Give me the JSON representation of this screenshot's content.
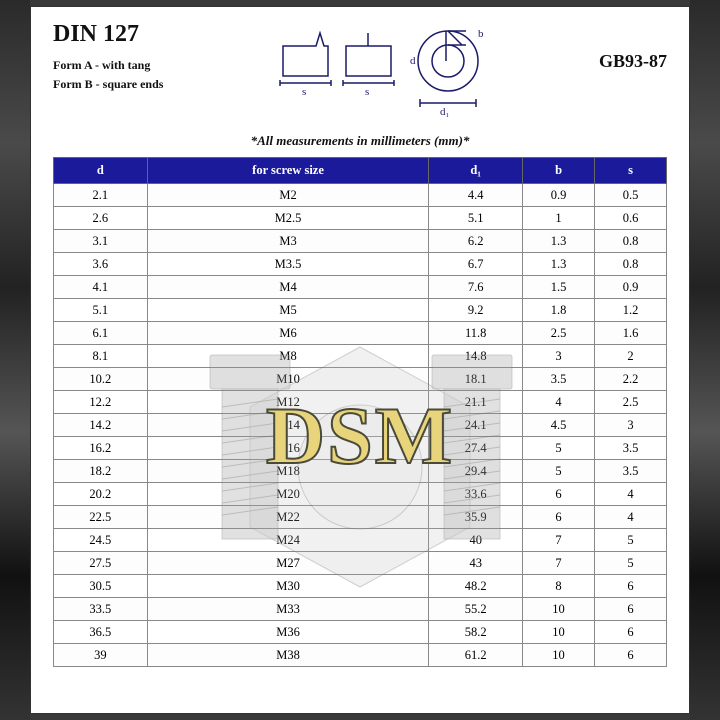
{
  "header": {
    "title": "DIN 127",
    "form_a": "Form A - with tang",
    "form_b": "Form B - square ends",
    "gb_code": "GB93-87",
    "mm_note": "*All measurements in millimeters (mm)*"
  },
  "watermark": {
    "text": "DSM",
    "text_fill": "#e8d47a",
    "text_stroke": "#4a4a3a"
  },
  "diagram": {
    "stroke": "#1a1a6a",
    "labels": {
      "s": "s",
      "d": "d",
      "d1": "d₁",
      "b": "b"
    }
  },
  "table": {
    "header_bg": "#1a1a9a",
    "header_fg": "#ffffff",
    "border_color": "#888888",
    "columns": [
      "d",
      "for screw size",
      "d₁",
      "b",
      "s"
    ],
    "rows": [
      [
        "2.1",
        "M2",
        "4.4",
        "0.9",
        "0.5"
      ],
      [
        "2.6",
        "M2.5",
        "5.1",
        "1",
        "0.6"
      ],
      [
        "3.1",
        "M3",
        "6.2",
        "1.3",
        "0.8"
      ],
      [
        "3.6",
        "M3.5",
        "6.7",
        "1.3",
        "0.8"
      ],
      [
        "4.1",
        "M4",
        "7.6",
        "1.5",
        "0.9"
      ],
      [
        "5.1",
        "M5",
        "9.2",
        "1.8",
        "1.2"
      ],
      [
        "6.1",
        "M6",
        "11.8",
        "2.5",
        "1.6"
      ],
      [
        "8.1",
        "M8",
        "14.8",
        "3",
        "2"
      ],
      [
        "10.2",
        "M10",
        "18.1",
        "3.5",
        "2.2"
      ],
      [
        "12.2",
        "M12",
        "21.1",
        "4",
        "2.5"
      ],
      [
        "14.2",
        "M14",
        "24.1",
        "4.5",
        "3"
      ],
      [
        "16.2",
        "M16",
        "27.4",
        "5",
        "3.5"
      ],
      [
        "18.2",
        "M18",
        "29.4",
        "5",
        "3.5"
      ],
      [
        "20.2",
        "M20",
        "33.6",
        "6",
        "4"
      ],
      [
        "22.5",
        "M22",
        "35.9",
        "6",
        "4"
      ],
      [
        "24.5",
        "M24",
        "40",
        "7",
        "5"
      ],
      [
        "27.5",
        "M27",
        "43",
        "7",
        "5"
      ],
      [
        "30.5",
        "M30",
        "48.2",
        "8",
        "6"
      ],
      [
        "33.5",
        "M33",
        "55.2",
        "10",
        "6"
      ],
      [
        "36.5",
        "M36",
        "58.2",
        "10",
        "6"
      ],
      [
        "39",
        "M38",
        "61.2",
        "10",
        "6"
      ]
    ]
  }
}
